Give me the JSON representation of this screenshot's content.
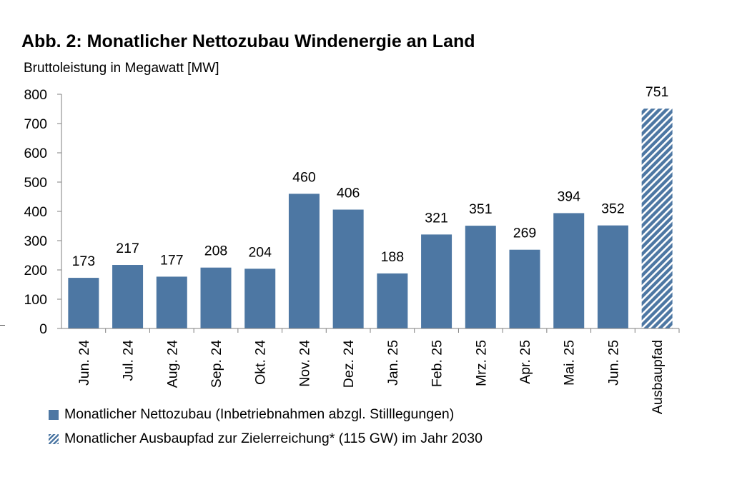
{
  "title": "Abb. 2: Monatlicher Nettozubau Windenergie an Land",
  "subtitle": "Bruttoleistung in Megawatt [MW]",
  "colors": {
    "bar": "#4d77a3",
    "axis": "#7f7f7f"
  },
  "legend": {
    "solid_label": "Monatlicher Nettozubau (Inbetriebnahmen abzgl. Stilllegungen)",
    "hatched_label": "Monatlicher Ausbaupfad zur Zielerreichung* (115 GW) im Jahr 2030"
  },
  "chart_data": {
    "type": "bar",
    "title": "Abb. 2: Monatlicher Nettozubau Windenergie an Land",
    "ylabel": "Bruttoleistung in Megawatt [MW]",
    "ylim": [
      0,
      800
    ],
    "yticks": [
      0,
      100,
      200,
      300,
      400,
      500,
      600,
      700,
      800
    ],
    "grid": false,
    "legend_position": "bottom",
    "categories": [
      "Jun. 24",
      "Jul. 24",
      "Aug. 24",
      "Sep. 24",
      "Okt. 24",
      "Nov. 24",
      "Dez. 24",
      "Jan. 25",
      "Feb. 25",
      "Mrz. 25",
      "Apr. 25",
      "Mai. 25",
      "Jun. 25",
      "Ausbaupfad"
    ],
    "values": [
      173,
      217,
      177,
      208,
      204,
      460,
      406,
      188,
      321,
      351,
      269,
      394,
      352,
      751
    ],
    "series": [
      {
        "name": "Monatlicher Nettozubau (Inbetriebnahmen abzgl. Stilllegungen)",
        "style": "solid",
        "categories_index": [
          0,
          1,
          2,
          3,
          4,
          5,
          6,
          7,
          8,
          9,
          10,
          11,
          12
        ]
      },
      {
        "name": "Monatlicher Ausbaupfad zur Zielerreichung* (115 GW) im Jahr 2030",
        "style": "hatched",
        "categories_index": [
          13
        ]
      }
    ]
  }
}
